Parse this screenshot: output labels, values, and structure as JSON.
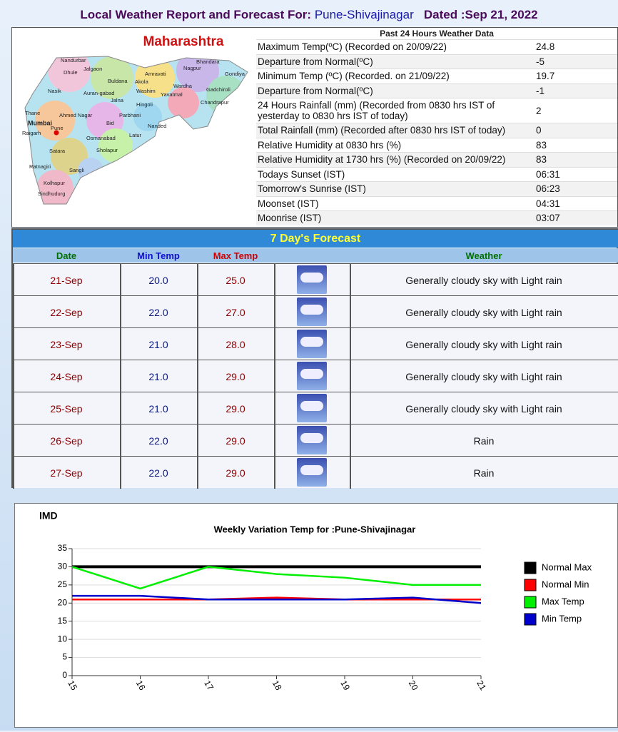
{
  "header": {
    "title": "Local Weather Report and Forecast For:",
    "station": "Pune-Shivajinagar",
    "dated": "Dated :Sep 21, 2022"
  },
  "map": {
    "title": "Maharashtra",
    "places": [
      "Nandurbar",
      "Jalgaon",
      "Dhule",
      "Bhandara",
      "Nagpur",
      "Gondiya",
      "Amravati",
      "Buldana",
      "Akola",
      "Washim",
      "Wardha",
      "Gadchiroli",
      "Nasik",
      "Auran-gabad",
      "Jalna",
      "Yavatmal",
      "Chandrapur",
      "Hingoli",
      "Thane",
      "Ahmed Nagar",
      "Parbhani",
      "Mumbai",
      "Pune",
      "Bid",
      "Nanded",
      "Raigarh",
      "Osmanabad",
      "Latur",
      "Satara",
      "Sholapur",
      "Ratnagiri",
      "Sangli",
      "Kolhapur",
      "Sindhudurg"
    ]
  },
  "past_24h": {
    "title": "Past 24 Hours Weather Data",
    "rows": [
      [
        "Maximum Temp(ºC) (Recorded on 20/09/22)",
        "24.8"
      ],
      [
        "Departure from Normal(ºC)",
        "-5"
      ],
      [
        "Minimum Temp (ºC) (Recorded. on 21/09/22)",
        "19.7"
      ],
      [
        "Departure from Normal(ºC)",
        "-1"
      ],
      [
        "24 Hours Rainfall (mm) (Recorded from 0830 hrs IST of yesterday to 0830 hrs IST of today)",
        "2"
      ],
      [
        "Total Rainfall (mm) (Recorded after 0830 hrs IST of today)",
        "0"
      ],
      [
        "Relative Humidity at 0830 hrs (%)",
        "83"
      ],
      [
        "Relative Humidity at 1730 hrs (%) (Recorded on 20/09/22)",
        "83"
      ],
      [
        "Todays Sunset (IST)",
        "06:31"
      ],
      [
        "Tomorrow's Sunrise (IST)",
        "06:23"
      ],
      [
        "Moonset (IST)",
        "04:31"
      ],
      [
        "Moonrise (IST)",
        "03:07"
      ]
    ]
  },
  "forecast": {
    "title": "7 Day's Forecast",
    "columns": [
      "Date",
      "Min Temp",
      "Max Temp",
      "Weather"
    ],
    "rows": [
      [
        "21-Sep",
        "20.0",
        "25.0",
        "Generally cloudy sky with Light rain"
      ],
      [
        "22-Sep",
        "22.0",
        "27.0",
        "Generally cloudy sky with Light rain"
      ],
      [
        "23-Sep",
        "21.0",
        "28.0",
        "Generally cloudy sky with Light rain"
      ],
      [
        "24-Sep",
        "21.0",
        "29.0",
        "Generally cloudy sky with Light rain"
      ],
      [
        "25-Sep",
        "21.0",
        "29.0",
        "Generally cloudy sky with Light rain"
      ],
      [
        "26-Sep",
        "22.0",
        "29.0",
        "Rain"
      ],
      [
        "27-Sep",
        "22.0",
        "29.0",
        "Rain"
      ]
    ]
  },
  "chart_data": {
    "type": "line",
    "source": "IMD",
    "title": "Weekly Variation Temp for :Pune-Shivajinagar",
    "x": [
      15,
      16,
      17,
      18,
      19,
      20,
      21
    ],
    "xlim": [
      15,
      21
    ],
    "xticks": [
      15,
      16,
      17,
      18,
      19,
      20,
      21
    ],
    "ylim": [
      0,
      35
    ],
    "yticks": [
      0,
      5,
      10,
      15,
      20,
      25,
      30,
      35
    ],
    "grid": true,
    "series": [
      {
        "name": "Normal Max",
        "color": "#000000",
        "values": [
          30,
          30,
          30,
          30,
          30,
          30,
          30
        ]
      },
      {
        "name": "Normal Min",
        "color": "#ff0000",
        "values": [
          21,
          21,
          21,
          21.5,
          21,
          21,
          21
        ]
      },
      {
        "name": "Max Temp",
        "color": "#00ee00",
        "values": [
          30,
          24,
          30,
          28,
          27,
          25,
          25
        ]
      },
      {
        "name": "Min Temp",
        "color": "#0000cc",
        "values": [
          22,
          22,
          21,
          21,
          21,
          21.5,
          20
        ]
      }
    ]
  }
}
